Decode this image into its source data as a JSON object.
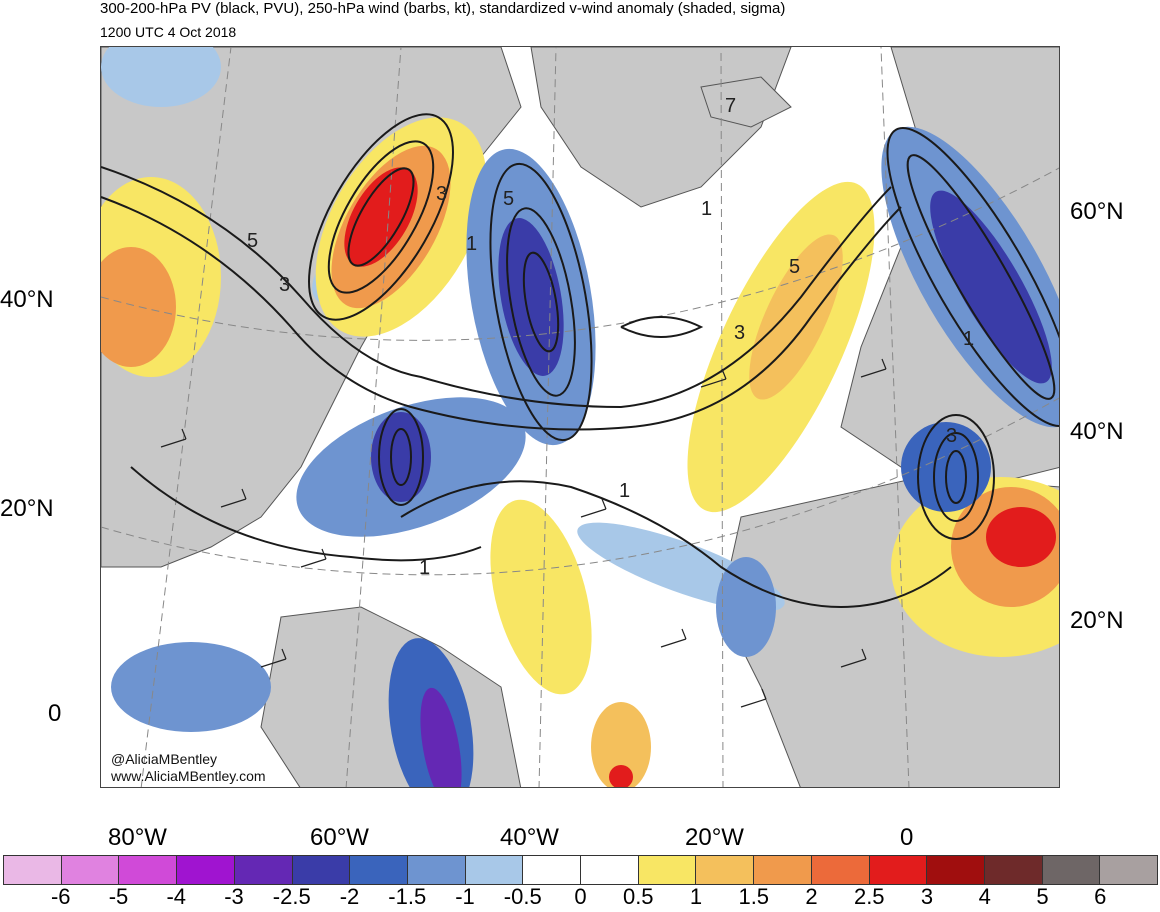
{
  "header": {
    "title": "300-200-hPa PV (black, PVU), 250-hPa wind (barbs, kt), standardized v-wind anomaly (shaded, sigma)",
    "subtitle": "1200 UTC 4 Oct 2018"
  },
  "map": {
    "credit_handle": "@AliciaMBentley",
    "credit_url": "www.AliciaMBentley.com",
    "left_lat_labels": [
      "40°N",
      "20°N",
      "0"
    ],
    "right_lat_labels": [
      "60°N",
      "40°N",
      "20°N"
    ],
    "lon_labels": [
      "80°W",
      "60°W",
      "40°W",
      "20°W",
      "0"
    ],
    "contour_labels": [
      "5",
      "3",
      "3",
      "1",
      "5",
      "7",
      "5",
      "3",
      "1",
      "1",
      "1",
      "3",
      "1"
    ],
    "colors": {
      "land": "#c8c8c8",
      "ocean": "#ffffff",
      "contour": "#1a1a1a",
      "coast": "#555555"
    }
  },
  "colorbar": {
    "labels": [
      "-6",
      "-5",
      "-4",
      "-3",
      "-2.5",
      "-2",
      "-1.5",
      "-1",
      "-0.5",
      "0",
      "0.5",
      "1",
      "1.5",
      "2",
      "2.5",
      "3",
      "4",
      "5",
      "6"
    ],
    "colors": [
      "#eab8e6",
      "#e082e0",
      "#d04ad8",
      "#a014d0",
      "#6428b4",
      "#3a3ca8",
      "#3a64bc",
      "#6e94d0",
      "#a8c8e8",
      "#ffffff",
      "#ffffff",
      "#f8e664",
      "#f4c05c",
      "#f09a4c",
      "#ec6a3a",
      "#e21c1c",
      "#a00e0e",
      "#6e2a2a",
      "#6e6666",
      "#a8a0a0"
    ]
  }
}
